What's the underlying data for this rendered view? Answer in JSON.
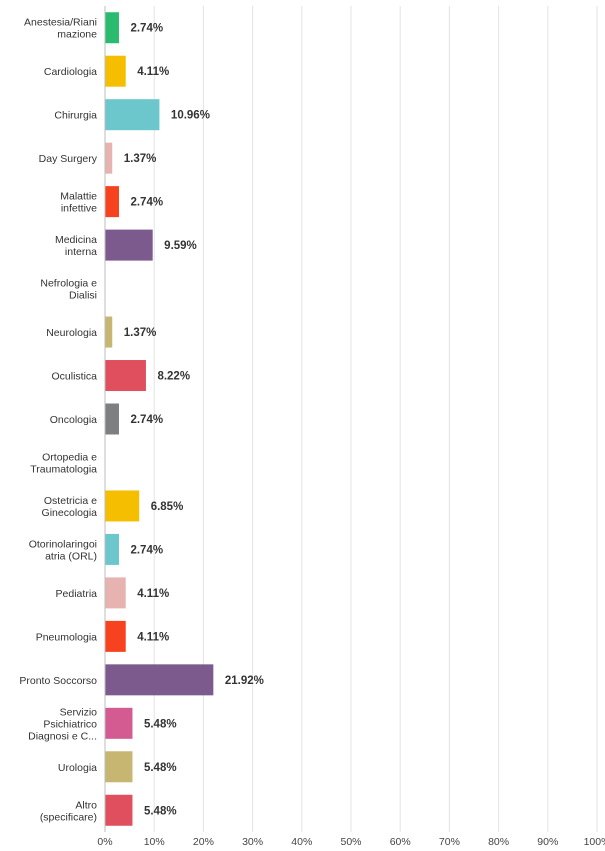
{
  "chart_data": {
    "type": "bar",
    "orientation": "horizontal",
    "categories": [
      "Anestesia/Rianimazione",
      "Cardiologia",
      "Chirurgia",
      "Day Surgery",
      "Malattie infettive",
      "Medicina interna",
      "Nefrologia e Dialisi",
      "Neurologia",
      "Oculistica",
      "Oncologia",
      "Ortopedia e Traumatologia",
      "Ostetricia e Ginecologia",
      "Otorinolaringoiatria (ORL)",
      "Pediatria",
      "Pneumologia",
      "Pronto Soccorso",
      "Servizio Psichiatrico Diagnosi e C...",
      "Urologia",
      "Altro (specificare)"
    ],
    "category_label_lines": [
      [
        "Anestesia/Riani",
        "mazione"
      ],
      [
        "Cardiologia"
      ],
      [
        "Chirurgia"
      ],
      [
        "Day Surgery"
      ],
      [
        "Malattie",
        "infettive"
      ],
      [
        "Medicina",
        "interna"
      ],
      [
        "Nefrologia e",
        "Dialisi"
      ],
      [
        "Neurologia"
      ],
      [
        "Oculistica"
      ],
      [
        "Oncologia"
      ],
      [
        "Ortopedia e",
        "Traumatologia"
      ],
      [
        "Ostetricia e",
        "Ginecologia"
      ],
      [
        "Otorinolaringoi",
        "atria (ORL)"
      ],
      [
        "Pediatria"
      ],
      [
        "Pneumologia"
      ],
      [
        "Pronto Soccorso"
      ],
      [
        "Servizio",
        "Psichiatrico",
        "Diagnosi e C..."
      ],
      [
        "Urologia"
      ],
      [
        "Altro",
        "(specificare)"
      ]
    ],
    "values": [
      2.74,
      4.11,
      10.96,
      1.37,
      2.74,
      9.59,
      0,
      1.37,
      8.22,
      2.74,
      0,
      6.85,
      2.74,
      4.11,
      4.11,
      21.92,
      5.48,
      5.48,
      5.48
    ],
    "value_labels": [
      "2.74%",
      "4.11%",
      "10.96%",
      "1.37%",
      "2.74%",
      "9.59%",
      "",
      "1.37%",
      "8.22%",
      "2.74%",
      "",
      "6.85%",
      "2.74%",
      "4.11%",
      "4.11%",
      "21.92%",
      "5.48%",
      "5.48%",
      "5.48%"
    ],
    "colors": [
      "#2bbb6e",
      "#f5bf00",
      "#6cc7cc",
      "#e7b3b1",
      "#f6421e",
      "#7d5a8e",
      "#cccccc",
      "#c7b572",
      "#df4f5e",
      "#7e7f83",
      "#cccccc",
      "#f5bf00",
      "#6cc7cc",
      "#e7b3b1",
      "#f6421e",
      "#7d5a8e",
      "#d45a92",
      "#c7b572",
      "#df4f5e"
    ],
    "xlim": [
      0,
      100
    ],
    "x_ticks": [
      "0%",
      "10%",
      "20%",
      "30%",
      "40%",
      "50%",
      "60%",
      "70%",
      "80%",
      "90%",
      "100%"
    ],
    "grid": true,
    "title": "",
    "xlabel": "",
    "ylabel": ""
  }
}
